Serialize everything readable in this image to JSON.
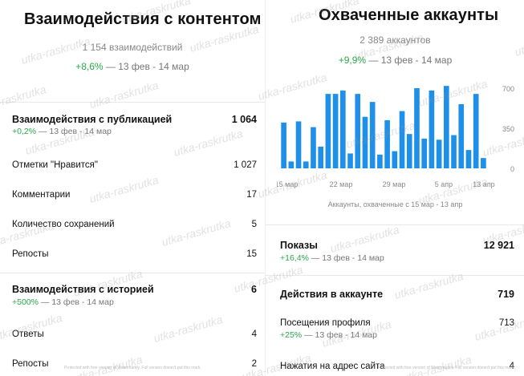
{
  "left": {
    "title": "Взаимодействия с контентом",
    "summary": {
      "count": "1 154 взаимодействий",
      "pct": "+8,6%",
      "range": " — 13 фев - 14 мар"
    },
    "posts": {
      "title": "Взаимодействия с публикацией",
      "value": "1 064",
      "pct": "+0,2%",
      "range": " — 13 фев - 14 мар",
      "rows": [
        {
          "label": "Отметки \"Нравится\"",
          "value": "1 027"
        },
        {
          "label": "Комментарии",
          "value": "17"
        },
        {
          "label": "Количество сохранений",
          "value": "5"
        },
        {
          "label": "Репосты",
          "value": "15"
        }
      ]
    },
    "stories": {
      "title": "Взаимодействия с историей",
      "value": "6",
      "pct": "+500%",
      "range": " — 13 фев - 14 мар",
      "rows": [
        {
          "label": "Ответы",
          "value": "4"
        },
        {
          "label": "Репосты",
          "value": "2"
        }
      ]
    },
    "footer_note": "Protected with free version of Watermarkly. Full version doesn't put this mark."
  },
  "right": {
    "title": "Охваченные аккаунты",
    "summary": {
      "count": "2 389 аккаунтов",
      "pct": "+9,9%",
      "range": " — 13 фев - 14 мар"
    },
    "chart_caption": "Аккаунты, охваченные с 15 мар - 13 апр",
    "impressions": {
      "title": "Показы",
      "value": "12 921",
      "pct": "+16,4%",
      "range": " — 13 фев - 14 мар"
    },
    "actions": {
      "title": "Действия в аккаунте",
      "value": "719"
    },
    "profile_visits": {
      "label": "Посещения профиля",
      "value": "713",
      "pct": "+25%",
      "range": " — 13 фев - 14 мар"
    },
    "address_taps": {
      "label": "Нажатия на адрес сайта",
      "value": "4"
    },
    "footer_note": "Protected with free version of Watermarkly. Full version doesn't put this mark."
  },
  "watermark_text": "utka-raskrutka",
  "colors": {
    "bar": "#1e90ea",
    "positive": "#2ca84a",
    "muted": "#888888"
  },
  "chart_data": {
    "type": "bar",
    "x_tick_labels": [
      "15 мар",
      "22 мар",
      "29 мар",
      "5 апр",
      "13 апр"
    ],
    "y_tick_labels": [
      "700",
      "350",
      "0"
    ],
    "ylim": [
      0,
      700
    ],
    "values": [
      400,
      60,
      410,
      60,
      360,
      190,
      650,
      650,
      680,
      130,
      650,
      450,
      580,
      120,
      420,
      150,
      500,
      300,
      700,
      260,
      680,
      250,
      720,
      290,
      560,
      160,
      650,
      90
    ],
    "grid": false
  }
}
